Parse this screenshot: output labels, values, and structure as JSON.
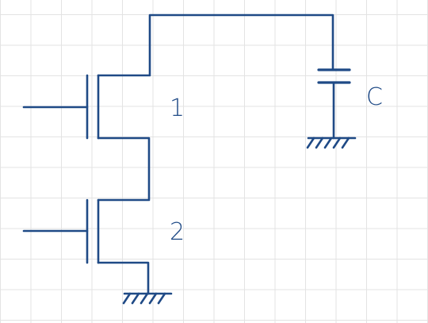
{
  "labels": {
    "transistor_1": "1",
    "transistor_2": "2",
    "capacitor": "C"
  },
  "colors": {
    "ink": "#1f4a86",
    "grid": "#e3e3e3",
    "background": "#ffffff"
  },
  "grid": {
    "visible": true
  }
}
